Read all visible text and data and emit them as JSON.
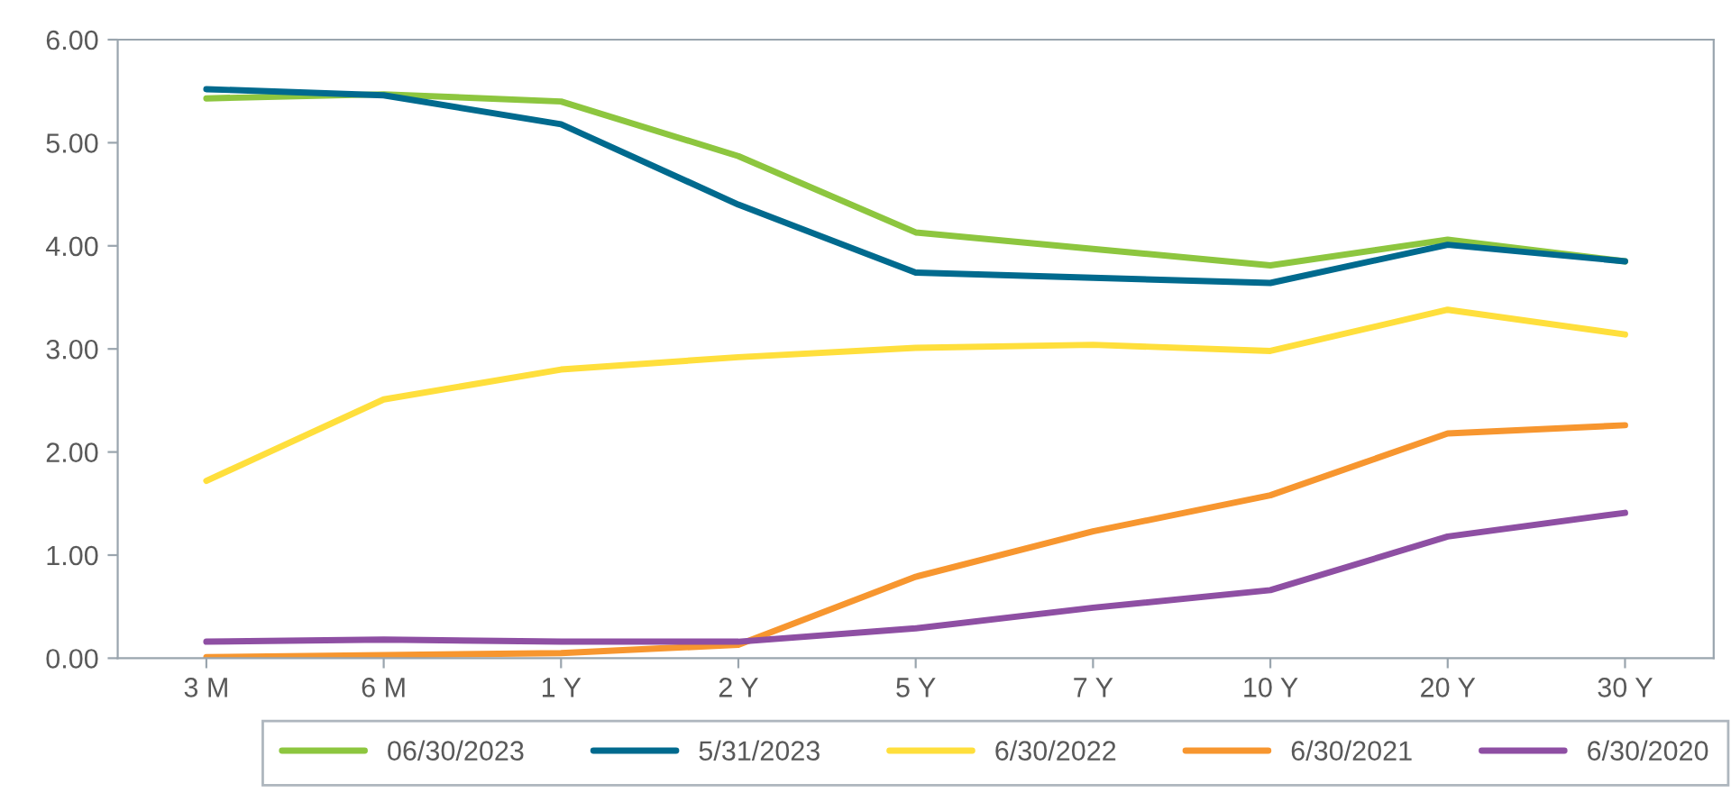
{
  "chart_data": {
    "type": "line",
    "categories": [
      "3 M",
      "6 M",
      "1 Y",
      "2 Y",
      "5 Y",
      "7 Y",
      "10 Y",
      "20 Y",
      "30 Y"
    ],
    "series": [
      {
        "name": "06/30/2023",
        "color": "#8dc63f",
        "values": [
          5.43,
          5.47,
          5.4,
          4.87,
          4.13,
          3.97,
          3.81,
          4.06,
          3.85
        ]
      },
      {
        "name": "5/31/2023",
        "color": "#006a8e",
        "values": [
          5.52,
          5.46,
          5.18,
          4.4,
          3.74,
          3.69,
          3.64,
          4.01,
          3.85
        ]
      },
      {
        "name": "6/30/2022",
        "color": "#ffdf3c",
        "values": [
          1.72,
          2.51,
          2.8,
          2.92,
          3.01,
          3.04,
          2.98,
          3.38,
          3.14
        ]
      },
      {
        "name": "6/30/2021",
        "color": "#f7962f",
        "values": [
          0.01,
          0.03,
          0.05,
          0.13,
          0.79,
          1.23,
          1.58,
          2.18,
          2.26
        ]
      },
      {
        "name": "6/30/2020",
        "color": "#8e4fa3",
        "values": [
          0.16,
          0.18,
          0.16,
          0.16,
          0.29,
          0.49,
          0.66,
          1.18,
          1.41
        ]
      }
    ],
    "ylim": [
      0,
      6
    ],
    "yticks": [
      {
        "value": 0,
        "label": "0.00"
      },
      {
        "value": 1,
        "label": "1.00"
      },
      {
        "value": 2,
        "label": "2.00"
      },
      {
        "value": 3,
        "label": "3.00"
      },
      {
        "value": 4,
        "label": "4.00"
      },
      {
        "value": 5,
        "label": "5.00"
      },
      {
        "value": 6,
        "label": "6.00"
      }
    ],
    "grid": false,
    "legend": "bottom",
    "marker": "none",
    "line_style": "solid"
  }
}
